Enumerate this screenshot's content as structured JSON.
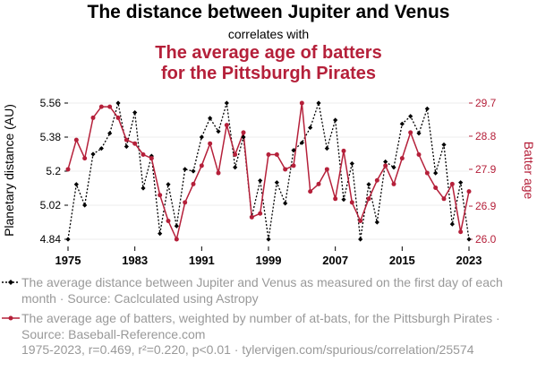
{
  "header": {
    "title": "The distance between Jupiter and Venus",
    "connector": "correlates with",
    "subtitle_line1": "The average age of batters",
    "subtitle_line2": "for the Pittsburgh Pirates"
  },
  "legend": {
    "series1": "The average distance between Jupiter and Venus as measured on the first day of each month · Source: Caclculated using Astropy",
    "series2": "The average age of batters, weighted by number of at-bats, for the Pittsburgh Pirates · Source: Baseball-Reference.com"
  },
  "footer": "1975-2023, r=0.469, r²=0.220, p<0.01 · tylervigen.com/spurious/correlation/25574",
  "chart_data": {
    "type": "line",
    "x": [
      1975,
      1976,
      1977,
      1978,
      1979,
      1980,
      1981,
      1982,
      1983,
      1984,
      1985,
      1986,
      1987,
      1988,
      1989,
      1990,
      1991,
      1992,
      1993,
      1994,
      1995,
      1996,
      1997,
      1998,
      1999,
      2000,
      2001,
      2002,
      2003,
      2004,
      2005,
      2006,
      2007,
      2008,
      2009,
      2010,
      2011,
      2012,
      2013,
      2014,
      2015,
      2016,
      2017,
      2018,
      2019,
      2020,
      2021,
      2022,
      2023
    ],
    "xticks": [
      "1975",
      "1983",
      "1991",
      "1999",
      "2007",
      "2015",
      "2023"
    ],
    "xlim": [
      1975,
      2023
    ],
    "y_left": {
      "label": "Planetary distance (AU)",
      "ticks": [
        "4.84",
        "5.02",
        "5.2",
        "5.38",
        "5.56"
      ],
      "lim": [
        4.84,
        5.56
      ]
    },
    "y_right": {
      "label": "Batter age",
      "ticks": [
        "26.0",
        "26.9",
        "27.9",
        "28.8",
        "29.7"
      ],
      "lim": [
        26.0,
        29.7
      ]
    },
    "series": [
      {
        "axis": "left",
        "color": "#000000",
        "style": "dotted",
        "marker": "diamond",
        "values": [
          4.84,
          5.13,
          5.02,
          5.29,
          5.32,
          5.4,
          5.56,
          5.33,
          5.51,
          5.11,
          5.28,
          4.87,
          5.13,
          4.91,
          5.21,
          5.2,
          5.38,
          5.48,
          5.41,
          5.56,
          5.22,
          5.38,
          4.96,
          5.15,
          4.84,
          5.14,
          5.03,
          5.31,
          5.35,
          5.43,
          5.56,
          5.32,
          5.47,
          5.05,
          5.24,
          4.84,
          5.13,
          4.93,
          5.25,
          5.22,
          5.45,
          5.49,
          5.4,
          5.53,
          5.19,
          5.34,
          4.92,
          5.14,
          4.84
        ]
      },
      {
        "axis": "right",
        "color": "#b5203a",
        "style": "solid",
        "marker": "circle",
        "values": [
          27.9,
          28.7,
          28.2,
          29.3,
          29.6,
          29.6,
          29.3,
          28.7,
          28.6,
          28.3,
          28.2,
          27.2,
          26.5,
          26.0,
          27.0,
          27.5,
          28.0,
          28.6,
          27.8,
          29.1,
          28.3,
          28.9,
          26.6,
          26.7,
          28.3,
          28.3,
          27.9,
          28.0,
          29.7,
          27.3,
          27.5,
          27.9,
          27.1,
          28.4,
          27.0,
          26.5,
          27.1,
          27.6,
          28.0,
          27.5,
          28.2,
          28.9,
          28.3,
          27.8,
          27.4,
          27.1,
          27.5,
          26.2,
          27.3
        ]
      }
    ],
    "grid": true
  }
}
